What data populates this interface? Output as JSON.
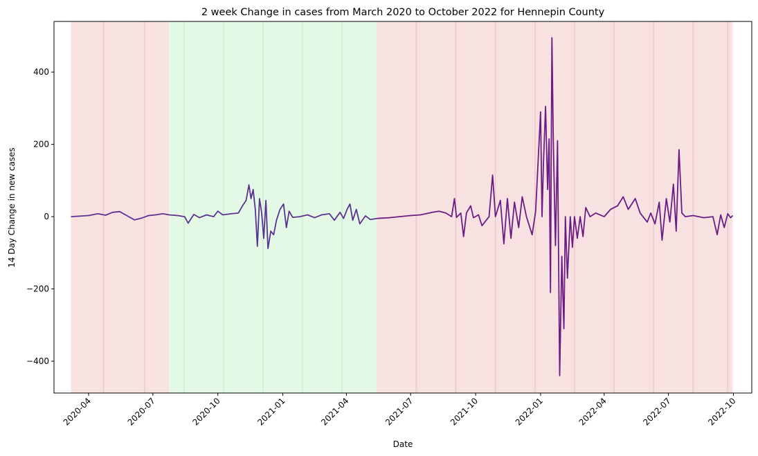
{
  "chart_data": {
    "type": "line",
    "title": "2 week Change in cases from March 2020 to October 2022 for Hennepin County",
    "xlabel": "Date",
    "ylabel": "14 Day Change in new cases",
    "x_range": [
      "2020-02-12",
      "2022-10-27"
    ],
    "ylim": [
      -488,
      540
    ],
    "x_ticks": [
      "2020-04",
      "2020-07",
      "2020-10",
      "2021-01",
      "2021-04",
      "2021-07",
      "2021-10",
      "2022-01",
      "2022-04",
      "2022-07",
      "2022-10"
    ],
    "y_ticks": [
      -400,
      -200,
      0,
      200,
      400
    ],
    "grid": false,
    "legend": "none",
    "colors": {
      "line_early": "#5a3290",
      "line_late": "#6a1b84",
      "shade_red": "#f7e1e1",
      "shade_green": "#e4f9e5",
      "divider_red": "#efc9cc",
      "divider_green": "#c9f0cc"
    },
    "shaded_periods": [
      {
        "start": "2020-03-07",
        "end": "2020-07-24",
        "color": "red"
      },
      {
        "start": "2020-07-24",
        "end": "2021-05-14",
        "color": "green"
      },
      {
        "start": "2021-05-14",
        "end": "2022-09-30",
        "color": "red"
      }
    ],
    "period_dividers": [
      "2020-04-22",
      "2020-06-19",
      "2020-08-14",
      "2020-10-09",
      "2020-12-04",
      "2021-01-29",
      "2021-03-26",
      "2021-07-09",
      "2021-09-03",
      "2021-10-29",
      "2021-12-24",
      "2022-02-18",
      "2022-04-15",
      "2022-06-10",
      "2022-08-05",
      "2022-09-23"
    ],
    "series": [
      {
        "points": [
          [
            "2020-03-07",
            0
          ],
          [
            "2020-04-01",
            3
          ],
          [
            "2020-04-14",
            8
          ],
          [
            "2020-04-25",
            4
          ],
          [
            "2020-05-05",
            12
          ],
          [
            "2020-05-15",
            14
          ],
          [
            "2020-05-25",
            3
          ],
          [
            "2020-06-05",
            -9
          ],
          [
            "2020-06-15",
            -4
          ],
          [
            "2020-06-25",
            3
          ],
          [
            "2020-07-05",
            5
          ],
          [
            "2020-07-15",
            8
          ],
          [
            "2020-07-24",
            5
          ],
          [
            "2020-08-05",
            3
          ],
          [
            "2020-08-15",
            0
          ],
          [
            "2020-08-20",
            -18
          ],
          [
            "2020-08-28",
            6
          ],
          [
            "2020-09-05",
            -3
          ],
          [
            "2020-09-15",
            5
          ],
          [
            "2020-09-25",
            0
          ],
          [
            "2020-10-01",
            15
          ],
          [
            "2020-10-08",
            5
          ],
          [
            "2020-10-20",
            8
          ],
          [
            "2020-10-30",
            10
          ],
          [
            "2020-11-05",
            30
          ],
          [
            "2020-11-10",
            45
          ],
          [
            "2020-11-14",
            88
          ],
          [
            "2020-11-17",
            50
          ],
          [
            "2020-11-20",
            75
          ],
          [
            "2020-11-23",
            20
          ],
          [
            "2020-11-26",
            -82
          ],
          [
            "2020-11-29",
            50
          ],
          [
            "2020-12-02",
            10
          ],
          [
            "2020-12-05",
            -60
          ],
          [
            "2020-12-08",
            45
          ],
          [
            "2020-12-11",
            -88
          ],
          [
            "2020-12-15",
            -40
          ],
          [
            "2020-12-19",
            -50
          ],
          [
            "2020-12-23",
            -10
          ],
          [
            "2020-12-28",
            20
          ],
          [
            "2021-01-02",
            35
          ],
          [
            "2021-01-06",
            -30
          ],
          [
            "2021-01-10",
            15
          ],
          [
            "2021-01-15",
            -2
          ],
          [
            "2021-01-25",
            0
          ],
          [
            "2021-02-05",
            5
          ],
          [
            "2021-02-15",
            -3
          ],
          [
            "2021-02-25",
            5
          ],
          [
            "2021-03-08",
            8
          ],
          [
            "2021-03-15",
            -10
          ],
          [
            "2021-03-23",
            12
          ],
          [
            "2021-03-28",
            -5
          ],
          [
            "2021-04-02",
            20
          ],
          [
            "2021-04-06",
            35
          ],
          [
            "2021-04-10",
            -10
          ],
          [
            "2021-04-15",
            20
          ],
          [
            "2021-04-20",
            -20
          ],
          [
            "2021-04-28",
            2
          ],
          [
            "2021-05-05",
            -8
          ],
          [
            "2021-05-14",
            -5
          ],
          [
            "2021-06-01",
            -3
          ],
          [
            "2021-06-15",
            0
          ],
          [
            "2021-07-01",
            3
          ],
          [
            "2021-07-15",
            5
          ],
          [
            "2021-08-01",
            12
          ],
          [
            "2021-08-10",
            15
          ],
          [
            "2021-08-20",
            10
          ],
          [
            "2021-08-28",
            0
          ],
          [
            "2021-09-01",
            50
          ],
          [
            "2021-09-04",
            -2
          ],
          [
            "2021-09-10",
            10
          ],
          [
            "2021-09-14",
            -55
          ],
          [
            "2021-09-18",
            10
          ],
          [
            "2021-09-24",
            30
          ],
          [
            "2021-09-28",
            -3
          ],
          [
            "2021-10-05",
            5
          ],
          [
            "2021-10-10",
            -25
          ],
          [
            "2021-10-20",
            0
          ],
          [
            "2021-10-25",
            115
          ],
          [
            "2021-10-29",
            0
          ],
          [
            "2021-11-05",
            45
          ],
          [
            "2021-11-10",
            -75
          ],
          [
            "2021-11-15",
            50
          ],
          [
            "2021-11-20",
            -60
          ],
          [
            "2021-11-25",
            40
          ],
          [
            "2021-12-01",
            -30
          ],
          [
            "2021-12-06",
            55
          ],
          [
            "2021-12-12",
            0
          ],
          [
            "2021-12-20",
            -50
          ],
          [
            "2021-12-25",
            15
          ],
          [
            "2021-12-28",
            135
          ],
          [
            "2022-01-01",
            290
          ],
          [
            "2022-01-03",
            0
          ],
          [
            "2022-01-05",
            145
          ],
          [
            "2022-01-08",
            305
          ],
          [
            "2022-01-11",
            75
          ],
          [
            "2022-01-13",
            215
          ],
          [
            "2022-01-15",
            -210
          ],
          [
            "2022-01-17",
            495
          ],
          [
            "2022-01-19",
            210
          ],
          [
            "2022-01-22",
            -80
          ],
          [
            "2022-01-25",
            210
          ],
          [
            "2022-01-28",
            -440
          ],
          [
            "2022-01-31",
            -110
          ],
          [
            "2022-02-03",
            -310
          ],
          [
            "2022-02-05",
            0
          ],
          [
            "2022-02-08",
            -170
          ],
          [
            "2022-02-12",
            0
          ],
          [
            "2022-02-15",
            -85
          ],
          [
            "2022-02-18",
            0
          ],
          [
            "2022-02-22",
            -60
          ],
          [
            "2022-02-26",
            0
          ],
          [
            "2022-03-02",
            -55
          ],
          [
            "2022-03-06",
            25
          ],
          [
            "2022-03-12",
            0
          ],
          [
            "2022-03-20",
            10
          ],
          [
            "2022-04-01",
            0
          ],
          [
            "2022-04-10",
            20
          ],
          [
            "2022-04-20",
            30
          ],
          [
            "2022-04-28",
            55
          ],
          [
            "2022-05-05",
            20
          ],
          [
            "2022-05-15",
            50
          ],
          [
            "2022-05-22",
            10
          ],
          [
            "2022-06-01",
            -15
          ],
          [
            "2022-06-06",
            10
          ],
          [
            "2022-06-12",
            -20
          ],
          [
            "2022-06-18",
            40
          ],
          [
            "2022-06-22",
            -65
          ],
          [
            "2022-06-28",
            50
          ],
          [
            "2022-07-03",
            -15
          ],
          [
            "2022-07-08",
            90
          ],
          [
            "2022-07-12",
            -40
          ],
          [
            "2022-07-16",
            185
          ],
          [
            "2022-07-20",
            10
          ],
          [
            "2022-07-25",
            0
          ],
          [
            "2022-08-05",
            3
          ],
          [
            "2022-08-20",
            -3
          ],
          [
            "2022-09-02",
            0
          ],
          [
            "2022-09-08",
            -50
          ],
          [
            "2022-09-13",
            5
          ],
          [
            "2022-09-18",
            -30
          ],
          [
            "2022-09-23",
            8
          ],
          [
            "2022-09-27",
            -3
          ],
          [
            "2022-09-30",
            3
          ]
        ]
      }
    ]
  }
}
